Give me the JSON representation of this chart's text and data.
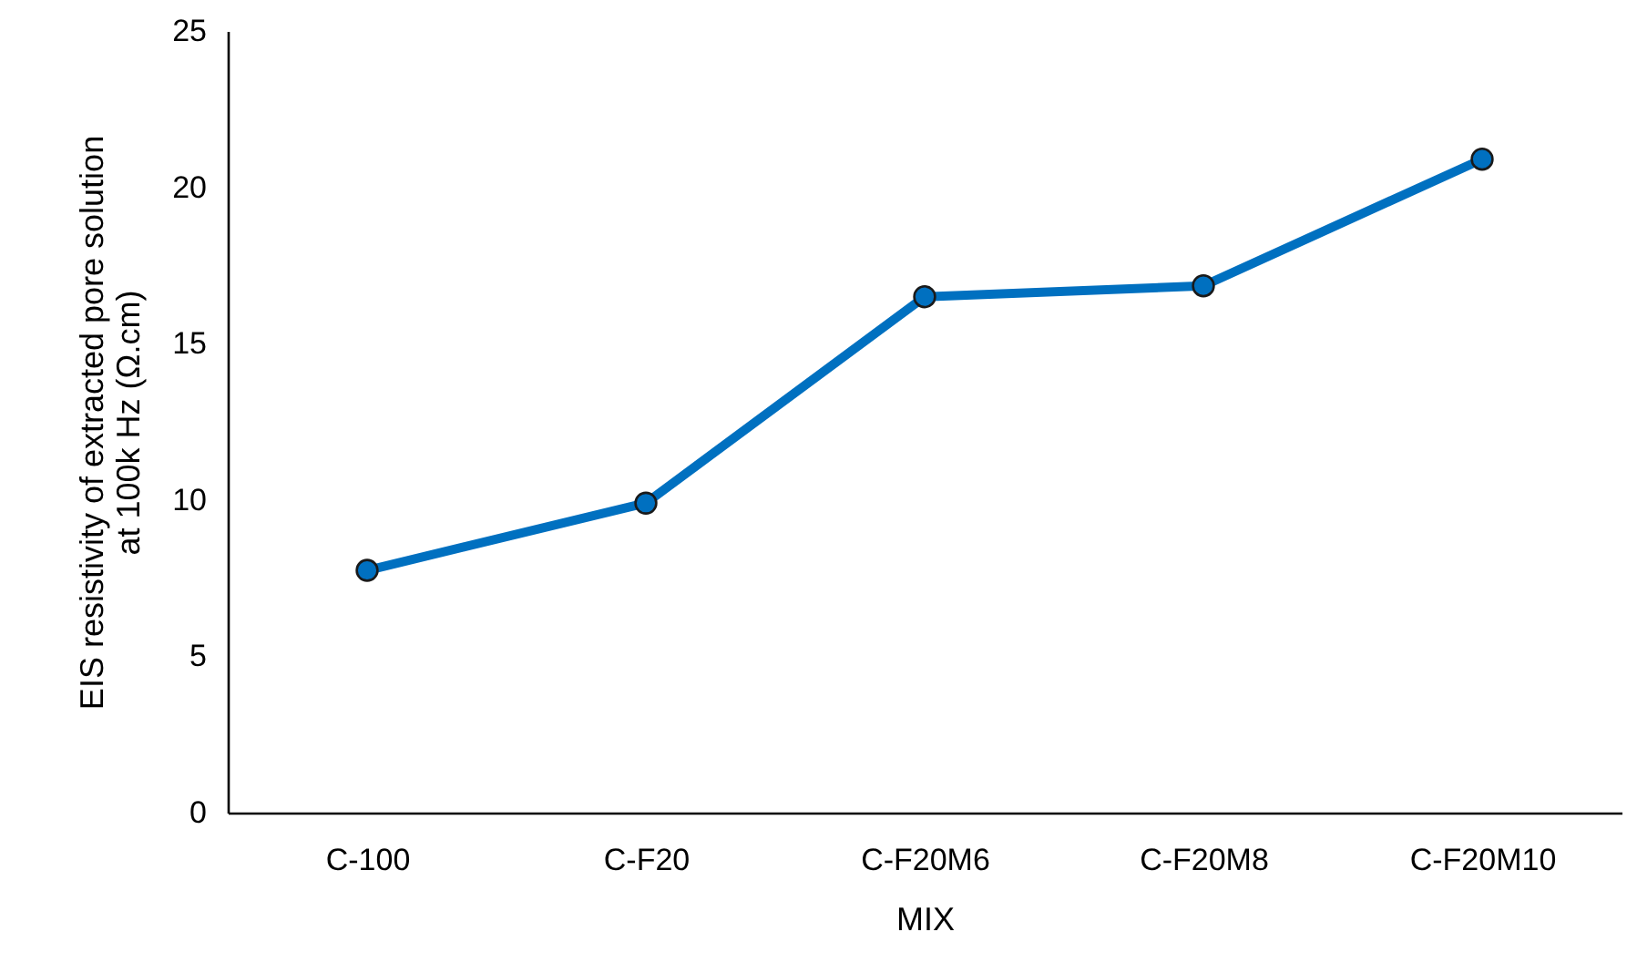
{
  "chart_data": {
    "type": "line",
    "xlabel": "MIX",
    "ylabel": "EIS resistivity of extracted pore solution\nat 100k Hz (Ω.cm)",
    "categories": [
      "C-100",
      "C-F20",
      "C-F20M6",
      "C-F20M8",
      "C-F20M10"
    ],
    "series": [
      {
        "color": "#0070c0",
        "values": [
          7.75,
          9.9,
          16.5,
          16.85,
          20.9
        ]
      }
    ],
    "ylim": [
      0,
      25
    ],
    "yticks": [
      0,
      5,
      10,
      15,
      20,
      25
    ],
    "grid": false,
    "marker": "circle",
    "line_style": "solid"
  }
}
